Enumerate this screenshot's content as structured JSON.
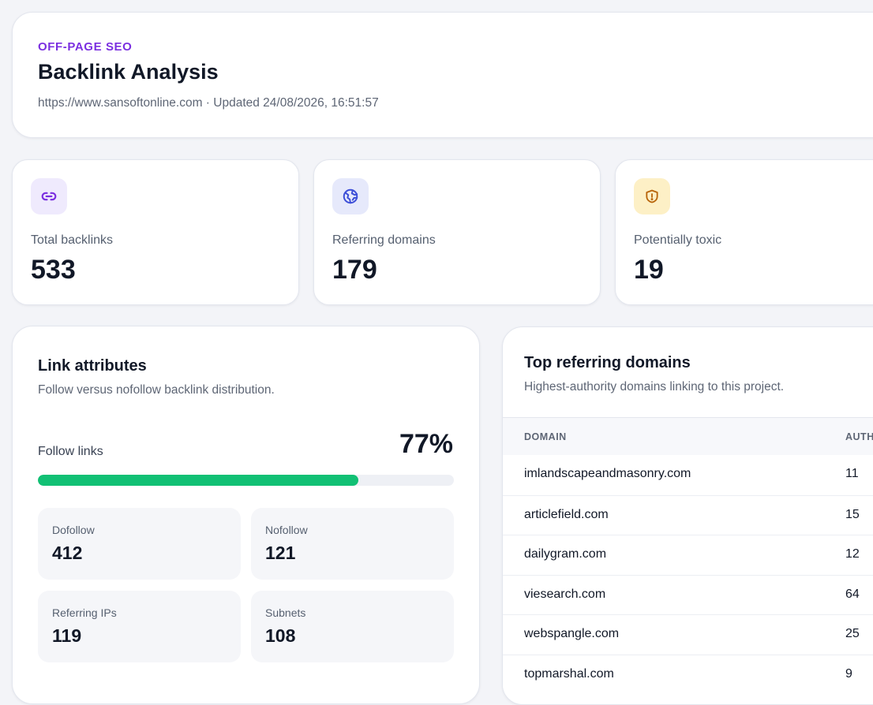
{
  "header": {
    "eyebrow": "OFF-PAGE SEO",
    "title": "Backlink Analysis",
    "meta": "https://www.sansoftonline.com · Updated 24/08/2026, 16:51:57"
  },
  "stats": [
    {
      "label": "Total backlinks",
      "value": "533",
      "icon": "link-icon",
      "color": "#7b2fe0",
      "bg": "#efeafd"
    },
    {
      "label": "Referring domains",
      "value": "179",
      "icon": "globe-icon",
      "color": "#3d4fd8",
      "bg": "#e6e9fb"
    },
    {
      "label": "Potentially toxic",
      "value": "19",
      "icon": "shield-alert-icon",
      "color": "#b8650a",
      "bg": "#fdf0c6"
    }
  ],
  "link_attributes": {
    "title": "Link attributes",
    "subtitle": "Follow versus nofollow backlink distribution.",
    "follow_label": "Follow links",
    "follow_pct_text": "77%",
    "follow_fraction": 0.77,
    "bar_color": "#11c074",
    "metrics": {
      "dofollow": {
        "label": "Dofollow",
        "value": "412"
      },
      "nofollow": {
        "label": "Nofollow",
        "value": "121"
      },
      "referring_ips": {
        "label": "Referring IPs",
        "value": "119"
      },
      "subnets": {
        "label": "Subnets",
        "value": "108"
      }
    }
  },
  "top_domains": {
    "title": "Top referring domains",
    "subtitle": "Highest-authority domains linking to this project.",
    "columns": [
      "DOMAIN",
      "AUTHORITY"
    ],
    "rows": [
      {
        "domain": "imlandscapeandmasonry.com",
        "authority": "11"
      },
      {
        "domain": "articlefield.com",
        "authority": "15"
      },
      {
        "domain": "dailygram.com",
        "authority": "12"
      },
      {
        "domain": "viesearch.com",
        "authority": "64"
      },
      {
        "domain": "webspangle.com",
        "authority": "25"
      },
      {
        "domain": "topmarshal.com",
        "authority": "9"
      }
    ]
  }
}
